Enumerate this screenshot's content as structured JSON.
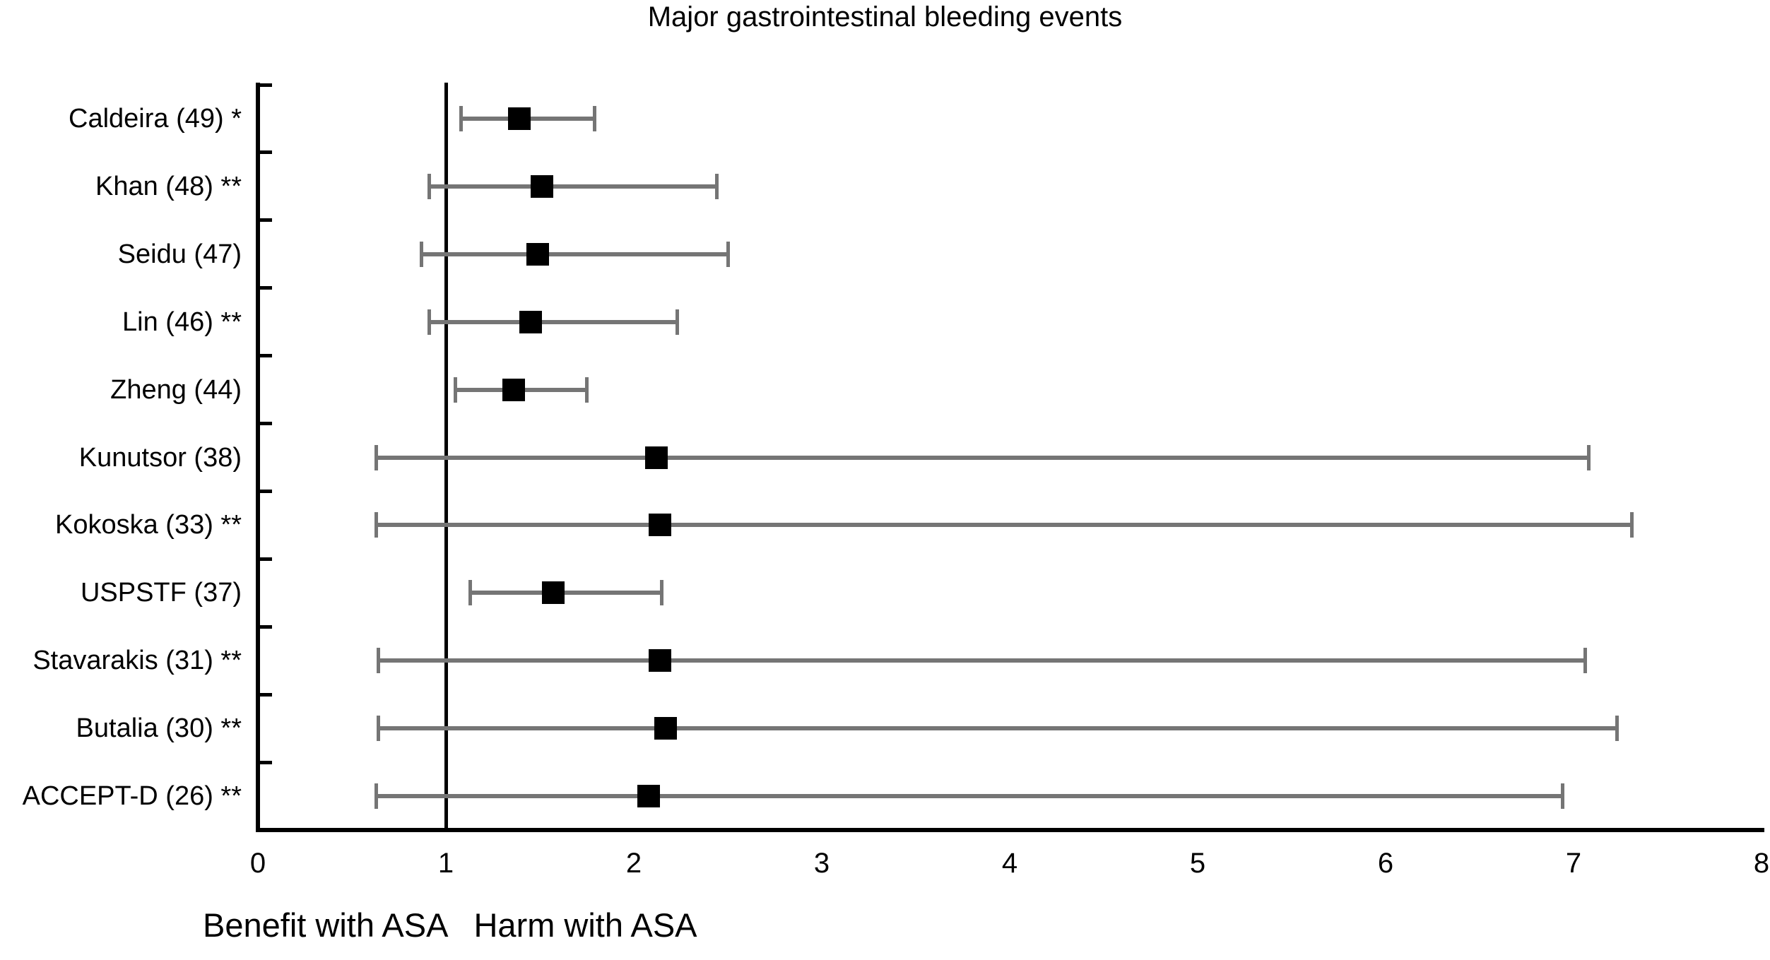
{
  "chart_data": {
    "type": "forest",
    "title": "Major gastrointestinal bleeding events",
    "x_axis": {
      "min": 0,
      "max": 8,
      "ticks": [
        0,
        1,
        2,
        3,
        4,
        5,
        6,
        7,
        8
      ],
      "reference_line_value": 1
    },
    "xlabel_left": "Benefit with ASA",
    "xlabel_right": "Harm with ASA",
    "ylabel": "",
    "grid": false,
    "legend": false,
    "studies": [
      {
        "label": "Caldeira (49) *",
        "or": 1.39,
        "ci_low": 1.08,
        "ci_high": 1.79
      },
      {
        "label": "Khan (48) **",
        "or": 1.51,
        "ci_low": 0.91,
        "ci_high": 2.44
      },
      {
        "label": "Seidu (47)",
        "or": 1.49,
        "ci_low": 0.87,
        "ci_high": 2.5
      },
      {
        "label": "Lin (46) **",
        "or": 1.45,
        "ci_low": 0.91,
        "ci_high": 2.23
      },
      {
        "label": "Zheng (44)",
        "or": 1.36,
        "ci_low": 1.05,
        "ci_high": 1.75
      },
      {
        "label": "Kunutsor (38)",
        "or": 2.12,
        "ci_low": 0.63,
        "ci_high": 7.08
      },
      {
        "label": "Kokoska (33) **",
        "or": 2.14,
        "ci_low": 0.63,
        "ci_high": 7.31
      },
      {
        "label": "USPSTF (37)",
        "or": 1.57,
        "ci_low": 1.13,
        "ci_high": 2.15
      },
      {
        "label": "Stavarakis (31) **",
        "or": 2.14,
        "ci_low": 0.64,
        "ci_high": 7.06
      },
      {
        "label": "Butalia (30) **",
        "or": 2.17,
        "ci_low": 0.64,
        "ci_high": 7.23
      },
      {
        "label": "ACCEPT-D (26) **",
        "or": 2.08,
        "ci_low": 0.63,
        "ci_high": 6.94
      }
    ],
    "colors": {
      "marker": "#000000",
      "ci_bar": "#757575",
      "axis": "#000000",
      "background": "#ffffff"
    }
  }
}
